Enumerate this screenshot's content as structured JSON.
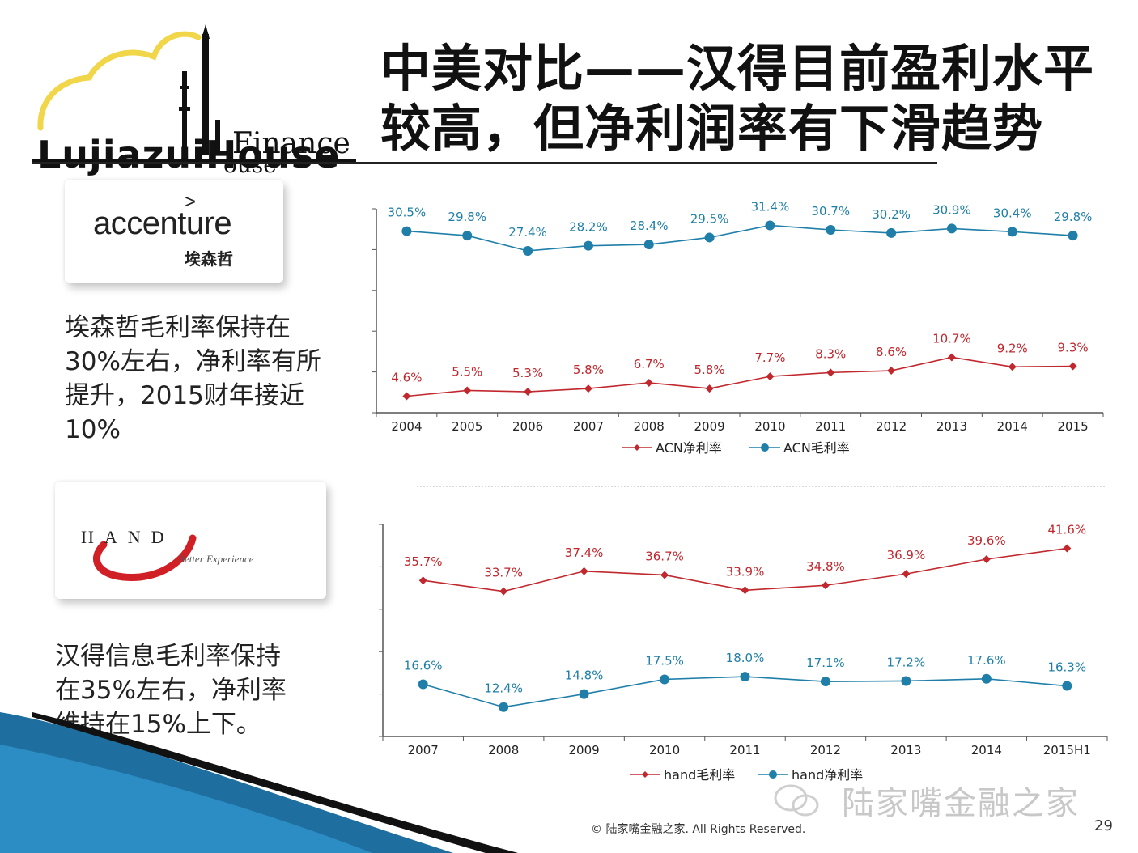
{
  "logo": {
    "wordmark": "LujiazuiHouse",
    "finance": "Finance",
    "house": "ouse"
  },
  "title": {
    "line1": "中美对比——汉得目前盈利水平",
    "line2": "较高，但净利润率有下滑趋势"
  },
  "accenture": {
    "name": "accenture",
    "mark": ">",
    "chinese": "埃森哲",
    "description": [
      "埃森哲毛利率保持在",
      "30%左右，净利率有所",
      "提升，2015财年接近",
      "10%"
    ]
  },
  "hand": {
    "name": "HAND",
    "tagline": "Better Experience",
    "description": [
      "汉得信息毛利率保持",
      "在35%左右，净利率",
      "维持在15%上下。"
    ]
  },
  "colors": {
    "red": "#c0282e",
    "blue": "#1f7fa8",
    "axis": "#555555"
  },
  "chart_data": [
    {
      "type": "line",
      "title": "",
      "categories": [
        "2004",
        "2005",
        "2006",
        "2007",
        "2008",
        "2009",
        "2010",
        "2011",
        "2012",
        "2013",
        "2014",
        "2015"
      ],
      "series": [
        {
          "name": "ACN净利率",
          "color": "#c0282e",
          "marker": "diamond",
          "values": [
            4.6,
            5.5,
            5.3,
            5.8,
            6.7,
            5.8,
            7.7,
            8.3,
            8.6,
            10.7,
            9.2,
            9.3
          ],
          "labels": [
            "4.6%",
            "5.5%",
            "5.3%",
            "5.8%",
            "6.7%",
            "5.8%",
            "7.7%",
            "8.3%",
            "8.6%",
            "10.7%",
            "9.2%",
            "9.3%"
          ]
        },
        {
          "name": "ACN毛利率",
          "color": "#1f7fa8",
          "marker": "circle",
          "values": [
            30.5,
            29.8,
            27.4,
            28.2,
            28.4,
            29.5,
            31.4,
            30.7,
            30.2,
            30.9,
            30.4,
            29.8
          ],
          "labels": [
            "30.5%",
            "29.8%",
            "27.4%",
            "28.2%",
            "28.4%",
            "29.5%",
            "31.4%",
            "30.7%",
            "30.2%",
            "30.9%",
            "30.4%",
            "29.8%"
          ]
        }
      ],
      "legend": "bottom",
      "grid": false
    },
    {
      "type": "line",
      "title": "",
      "categories": [
        "2007",
        "2008",
        "2009",
        "2010",
        "2011",
        "2012",
        "2013",
        "2014",
        "2015H1"
      ],
      "series": [
        {
          "name": "hand毛利率",
          "color": "#c0282e",
          "marker": "diamond",
          "values": [
            35.7,
            33.7,
            37.4,
            36.7,
            33.9,
            34.8,
            36.9,
            39.6,
            41.6
          ],
          "labels": [
            "35.7%",
            "33.7%",
            "37.4%",
            "36.7%",
            "33.9%",
            "34.8%",
            "36.9%",
            "39.6%",
            "41.6%"
          ]
        },
        {
          "name": "hand净利率",
          "color": "#1f7fa8",
          "marker": "circle",
          "values": [
            16.6,
            12.4,
            14.8,
            17.5,
            18.0,
            17.1,
            17.2,
            17.6,
            16.3
          ],
          "labels": [
            "16.6%",
            "12.4%",
            "14.8%",
            "17.5%",
            "18.0%",
            "17.1%",
            "17.2%",
            "17.6%",
            "16.3%"
          ]
        }
      ],
      "legend": "bottom",
      "grid": false
    }
  ],
  "footer": {
    "watermark": "陆家嘴金融之家",
    "copyright": "© 陆家嘴金融之家. All Rights Reserved.",
    "page": "29"
  }
}
